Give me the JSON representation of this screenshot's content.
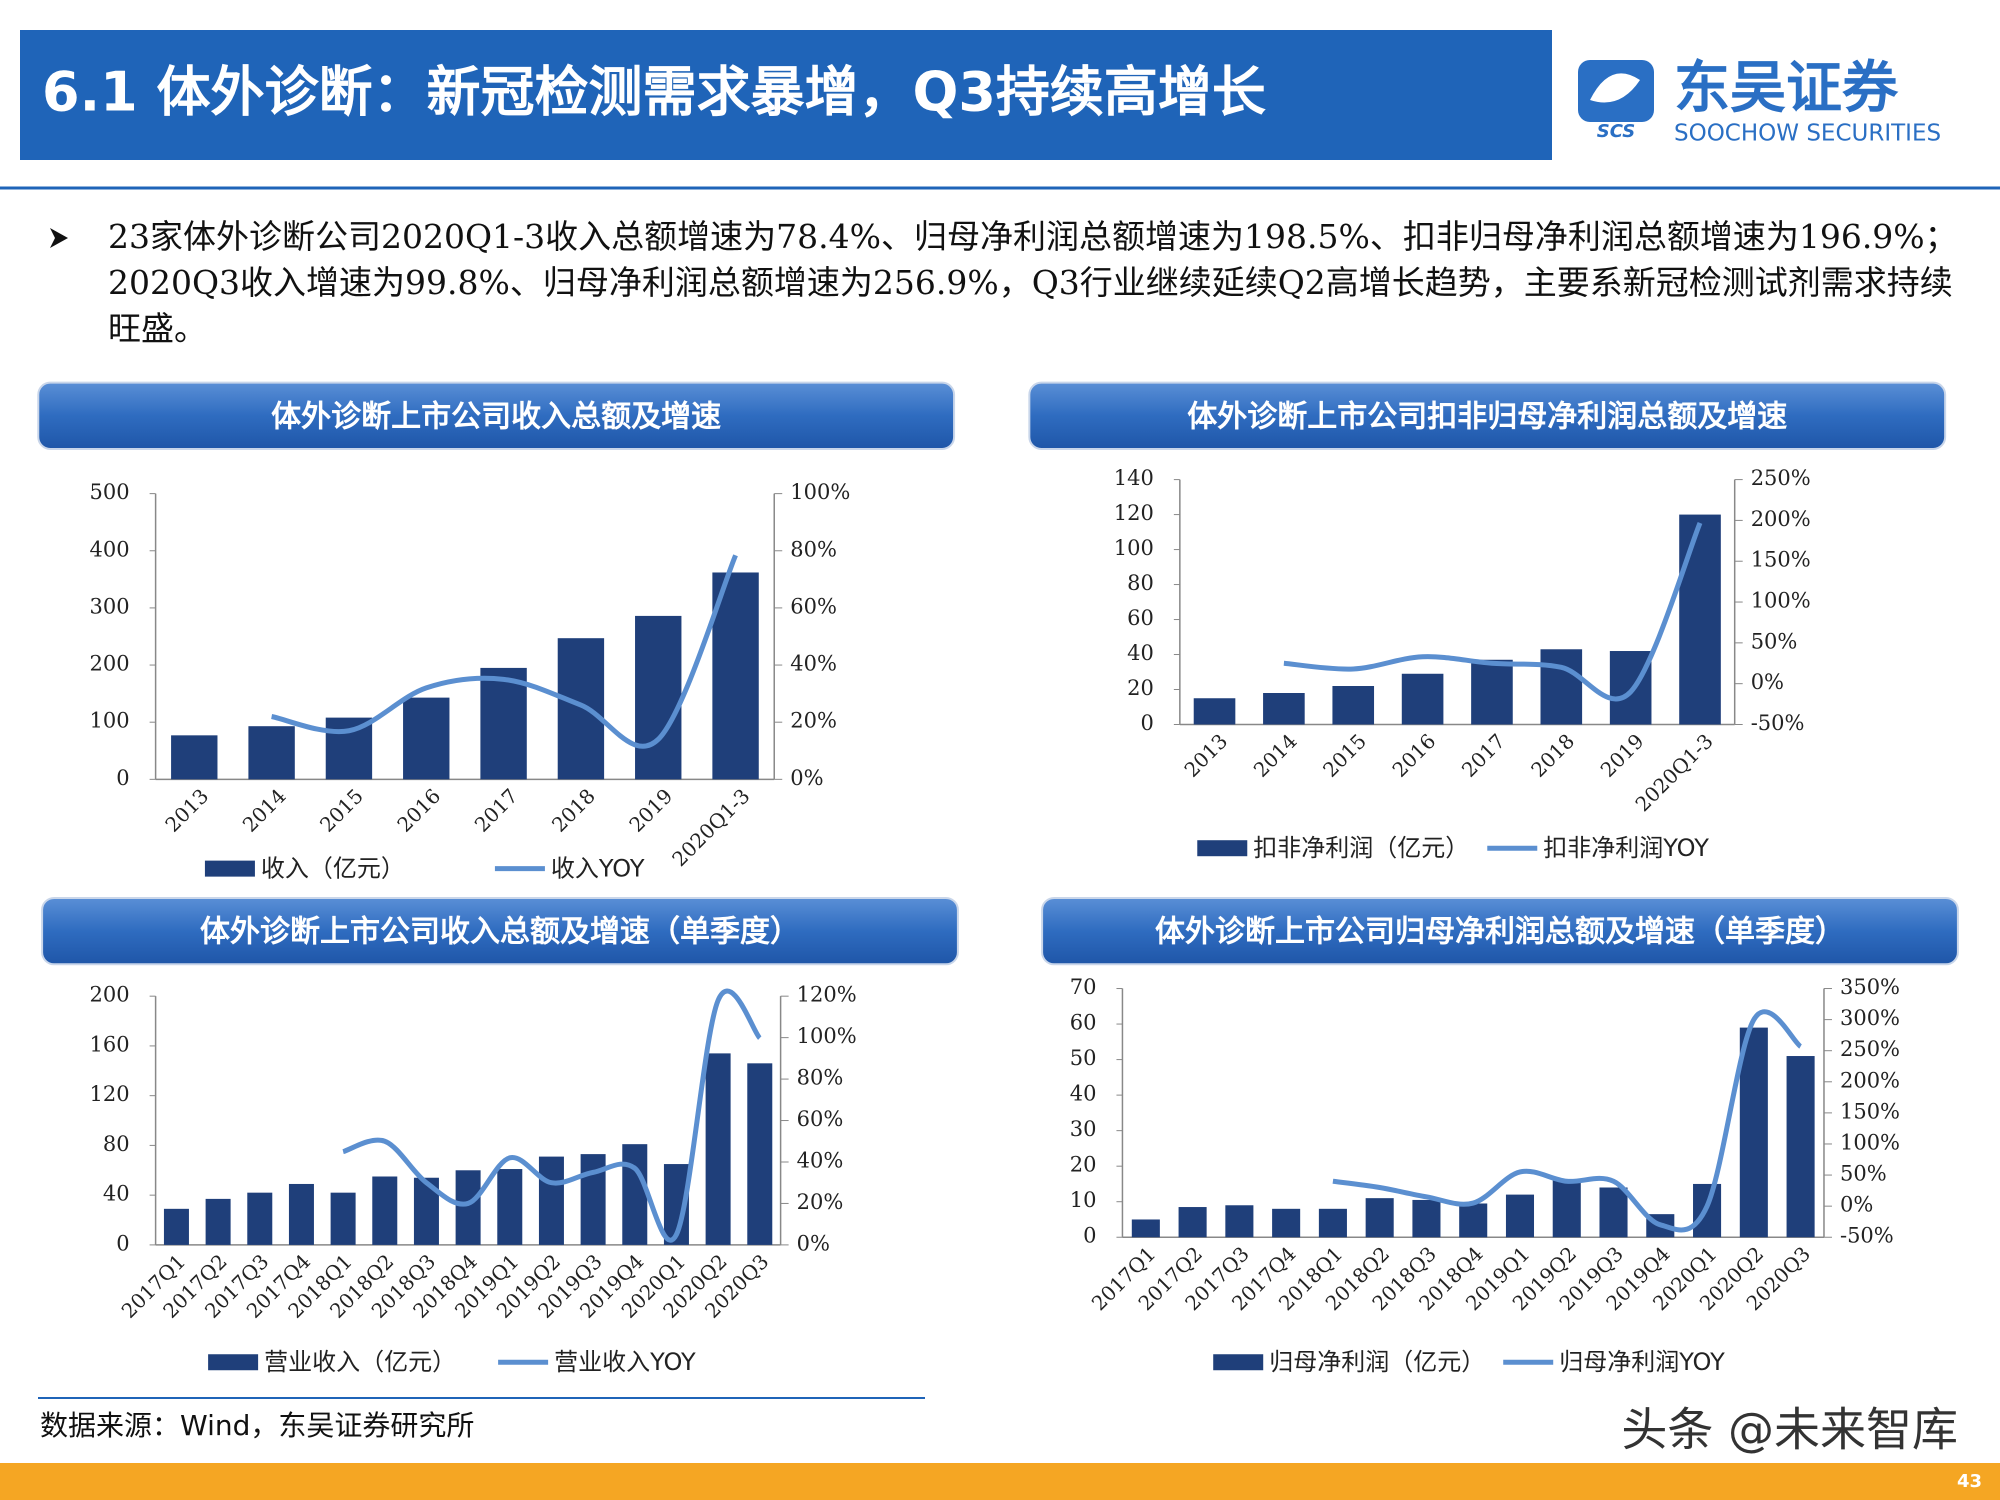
{
  "header": {
    "title": "6.1 体外诊断：新冠检测需求暴增，Q3持续高增长",
    "logo_cn": "东吴证券",
    "logo_abbr": "SCS",
    "logo_en": "SOOCHOW SECURITIES"
  },
  "bullet": "23家体外诊断公司2020Q1-3收入总额增速为78.4%、归母净利润总额增速为198.5%、扣非归母净利润总额增速为196.9%；2020Q3收入增速为99.8%、归母净利润总额增速为256.9%，Q3行业继续延续Q2高增长趋势，主要系新冠检测试剂需求持续旺盛。",
  "chart_data": [
    {
      "type": "bar-line",
      "title": "体外诊断上市公司收入总额及增速",
      "categories": [
        "2013",
        "2014",
        "2015",
        "2016",
        "2017",
        "2018",
        "2019",
        "2020Q1-3"
      ],
      "series": [
        {
          "name": "收入（亿元）",
          "color": "#1f3f7a",
          "values": [
            77,
            93,
            108,
            143,
            195,
            247,
            286,
            362
          ]
        },
        {
          "name": "收入YOY",
          "color": "#5b8fd0",
          "axis": "y2",
          "values": [
            null,
            22,
            17,
            32,
            35,
            26,
            14,
            78.4
          ]
        }
      ],
      "ylim": [
        0,
        500
      ],
      "yticks": [
        0,
        100,
        200,
        300,
        400,
        500
      ],
      "y2lim": [
        0,
        100
      ],
      "y2ticks": [
        {
          "value": 0,
          "label": "0%"
        },
        {
          "value": 20,
          "label": "20%"
        },
        {
          "value": 40,
          "label": "40%"
        },
        {
          "value": 60,
          "label": "60%"
        },
        {
          "value": 80,
          "label": "80%"
        },
        {
          "value": 100,
          "label": "100%"
        }
      ]
    },
    {
      "type": "bar-line",
      "title": "体外诊断上市公司扣非归母净利润总额及增速",
      "categories": [
        "2013",
        "2014",
        "2015",
        "2016",
        "2017",
        "2018",
        "2019",
        "2020Q1-3"
      ],
      "series": [
        {
          "name": "扣非净利润（亿元）",
          "color": "#1f3f7a",
          "values": [
            15,
            18,
            22,
            29,
            37,
            43,
            42,
            120
          ]
        },
        {
          "name": "扣非净利润YOY",
          "color": "#5b8fd0",
          "axis": "y2",
          "values": [
            null,
            25,
            18,
            33,
            25,
            20,
            -10,
            196.9
          ]
        }
      ],
      "ylim": [
        0,
        140
      ],
      "yticks": [
        0,
        20,
        40,
        60,
        80,
        100,
        120,
        140
      ],
      "y2lim": [
        -50,
        250
      ],
      "y2ticks": [
        {
          "value": -50,
          "label": "-50%"
        },
        {
          "value": 0,
          "label": "0%"
        },
        {
          "value": 50,
          "label": "50%"
        },
        {
          "value": 100,
          "label": "100%"
        },
        {
          "value": 150,
          "label": "150%"
        },
        {
          "value": 200,
          "label": "200%"
        },
        {
          "value": 250,
          "label": "250%"
        }
      ]
    },
    {
      "type": "bar-line",
      "title": "体外诊断上市公司收入总额及增速（单季度）",
      "categories": [
        "2017Q1",
        "2017Q2",
        "2017Q3",
        "2017Q4",
        "2018Q1",
        "2018Q2",
        "2018Q3",
        "2018Q4",
        "2019Q1",
        "2019Q2",
        "2019Q3",
        "2019Q4",
        "2020Q1",
        "2020Q2",
        "2020Q3"
      ],
      "series": [
        {
          "name": "营业收入（亿元）",
          "color": "#1f3f7a",
          "values": [
            29,
            37,
            42,
            49,
            42,
            55,
            54,
            60,
            61,
            71,
            73,
            81,
            65,
            154,
            146
          ]
        },
        {
          "name": "营业收入YOY",
          "color": "#5b8fd0",
          "axis": "y2",
          "values": [
            null,
            null,
            null,
            null,
            45,
            50,
            30,
            20,
            42,
            30,
            35,
            37,
            5,
            118,
            99.8
          ]
        }
      ],
      "ylim": [
        0,
        200
      ],
      "yticks": [
        0,
        40,
        80,
        120,
        160,
        200
      ],
      "y2lim": [
        0,
        120
      ],
      "y2ticks": [
        {
          "value": 0,
          "label": "0%"
        },
        {
          "value": 20,
          "label": "20%"
        },
        {
          "value": 40,
          "label": "40%"
        },
        {
          "value": 60,
          "label": "60%"
        },
        {
          "value": 80,
          "label": "80%"
        },
        {
          "value": 100,
          "label": "100%"
        },
        {
          "value": 120,
          "label": "120%"
        }
      ]
    },
    {
      "type": "bar-line",
      "title": "体外诊断上市公司归母净利润总额及增速（单季度）",
      "categories": [
        "2017Q1",
        "2017Q2",
        "2017Q3",
        "2017Q4",
        "2018Q1",
        "2018Q2",
        "2018Q3",
        "2018Q4",
        "2019Q1",
        "2019Q2",
        "2019Q3",
        "2019Q4",
        "2020Q1",
        "2020Q2",
        "2020Q3"
      ],
      "series": [
        {
          "name": "归母净利润（亿元）",
          "color": "#1f3f7a",
          "values": [
            5,
            8.5,
            9,
            8,
            8,
            11,
            10.5,
            9.5,
            12,
            16,
            14,
            6.5,
            15,
            59,
            51
          ]
        },
        {
          "name": "归母净利润YOY",
          "color": "#5b8fd0",
          "axis": "y2",
          "values": [
            null,
            null,
            null,
            null,
            40,
            30,
            15,
            5,
            55,
            40,
            40,
            -30,
            0,
            300,
            256.9
          ]
        }
      ],
      "ylim": [
        0,
        70
      ],
      "yticks": [
        0,
        10,
        20,
        30,
        40,
        50,
        60,
        70
      ],
      "y2lim": [
        -50,
        350
      ],
      "y2ticks": [
        {
          "value": -50,
          "label": "-50%"
        },
        {
          "value": 0,
          "label": "0%"
        },
        {
          "value": 50,
          "label": "50%"
        },
        {
          "value": 100,
          "label": "100%"
        },
        {
          "value": 150,
          "label": "150%"
        },
        {
          "value": 200,
          "label": "200%"
        },
        {
          "value": 250,
          "label": "250%"
        },
        {
          "value": 300,
          "label": "300%"
        },
        {
          "value": 350,
          "label": "350%"
        }
      ]
    }
  ],
  "source": "数据来源：Wind，东吴证券研究所",
  "watermark": "头条 @未来智库",
  "page_number": "43"
}
